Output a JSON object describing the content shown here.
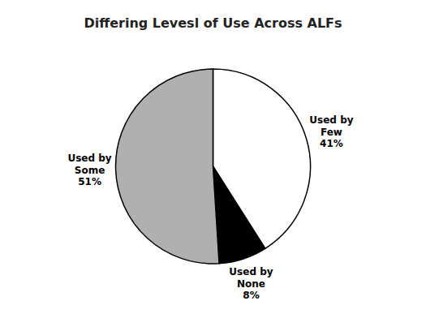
{
  "chart_data": {
    "type": "pie",
    "title": "Differing Levesl of Use Across ALFs",
    "categories": [
      "Used by\nFew",
      "Used by\nNone",
      "Used by\nSome"
    ],
    "values": [
      41,
      8,
      51
    ],
    "value_labels": [
      "41%",
      "8%",
      "51%"
    ],
    "colors": [
      "#ffffff",
      "#000000",
      "#b0b0b0"
    ],
    "data_labels": true
  }
}
